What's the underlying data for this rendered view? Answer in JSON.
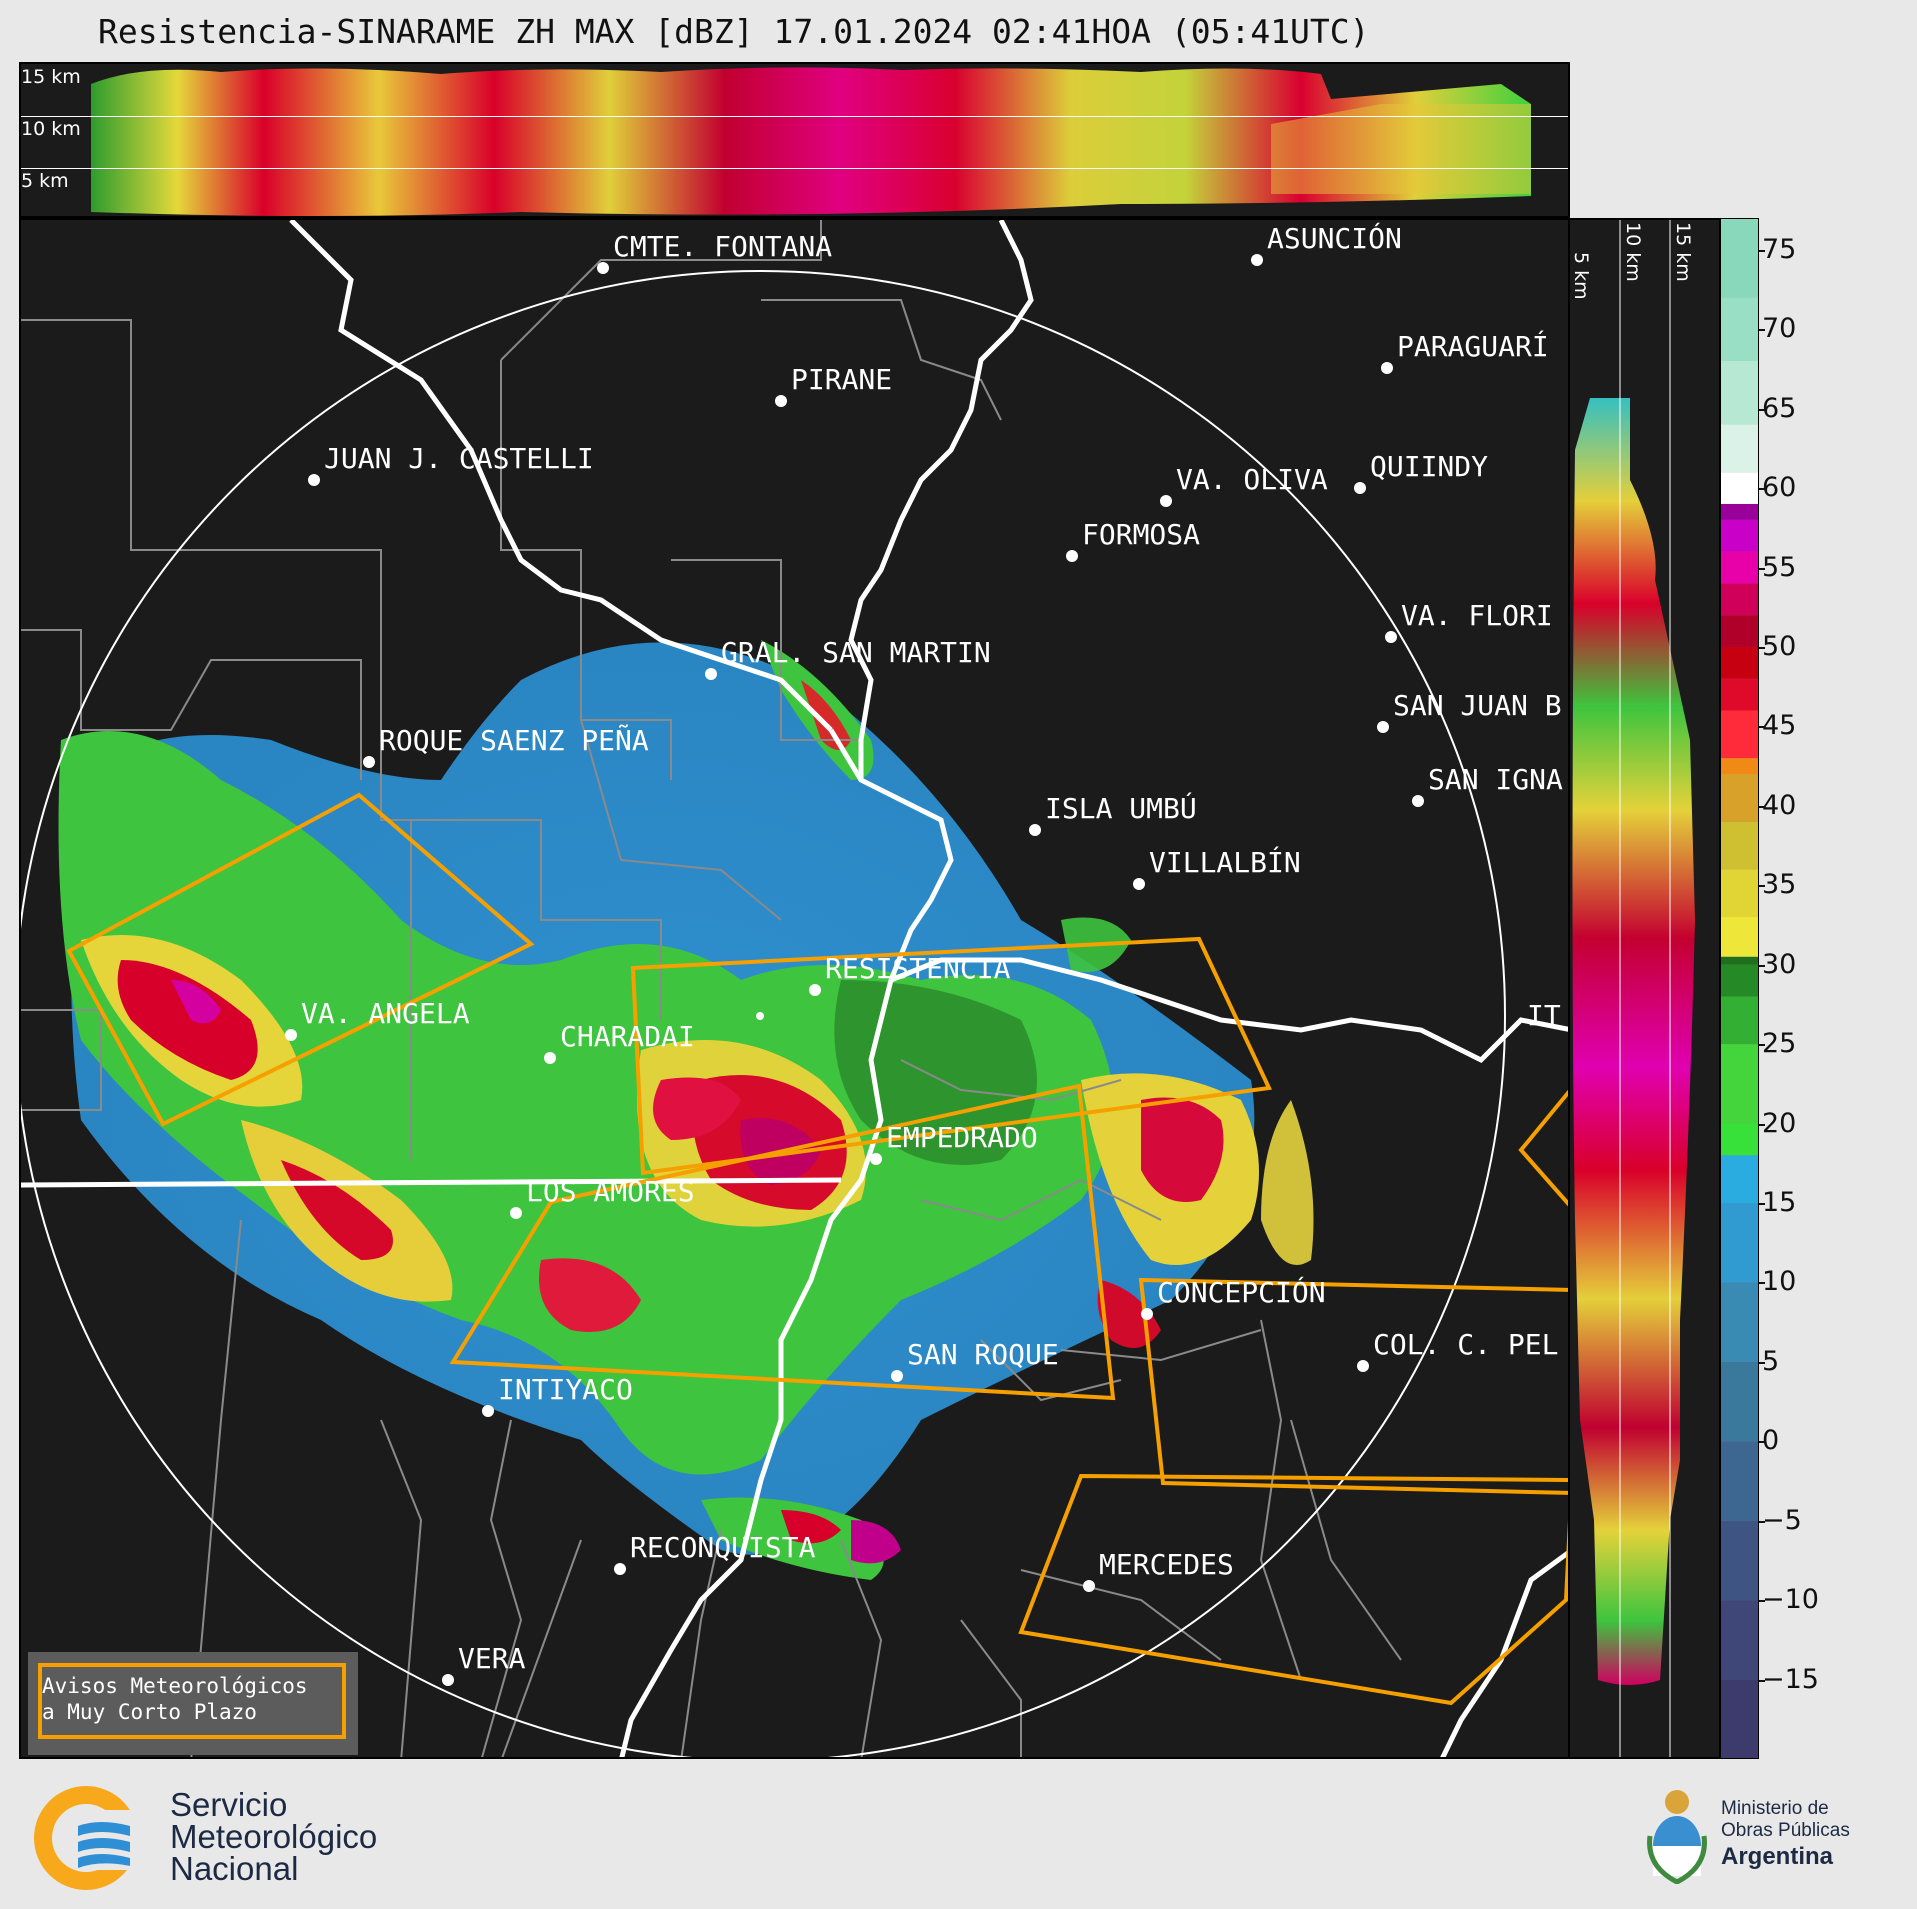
{
  "title": "Resistencia-SINARAME ZH MAX [dBZ] 17.01.2024 02:41HOA (05:41UTC)",
  "top_panel": {
    "km_labels": [
      "15 km",
      "10 km",
      "5 km"
    ]
  },
  "side_panel": {
    "km_labels": [
      "5 km",
      "10 km",
      "15 km"
    ]
  },
  "colorbar": {
    "unit": "dBZ",
    "ticks": [
      "75",
      "70",
      "65",
      "60",
      "55",
      "50",
      "45",
      "40",
      "35",
      "30",
      "25",
      "20",
      "15",
      "10",
      "5",
      "0",
      "−5",
      "−10",
      "−15"
    ],
    "range": [
      -20,
      77
    ]
  },
  "cities": [
    {
      "name": "CMTE. FONTANA"
    },
    {
      "name": "ASUNCIÓN"
    },
    {
      "name": "PARAGUARÍ"
    },
    {
      "name": "PIRANE"
    },
    {
      "name": "JUAN J. CASTELLI"
    },
    {
      "name": "VA. OLIVA"
    },
    {
      "name": "QUIINDY"
    },
    {
      "name": "FORMOSA"
    },
    {
      "name": "VA. FLORI"
    },
    {
      "name": "GRAL. SAN MARTIN"
    },
    {
      "name": "SAN JUAN B"
    },
    {
      "name": "ROQUE SAENZ PEÑA"
    },
    {
      "name": "SAN IGNA"
    },
    {
      "name": "ISLA UMBÚ"
    },
    {
      "name": "VILLALBÍN"
    },
    {
      "name": "RESISTENCIA"
    },
    {
      "name": "VA. ANGELA"
    },
    {
      "name": "IT"
    },
    {
      "name": "CHARADAI"
    },
    {
      "name": "EMPEDRADO"
    },
    {
      "name": "LOS AMORES"
    },
    {
      "name": "CONCEPCIÓN"
    },
    {
      "name": "COL. C. PEL"
    },
    {
      "name": "SAN ROQUE"
    },
    {
      "name": "INTIYACO"
    },
    {
      "name": "RECONQUISTA"
    },
    {
      "name": "MERCEDES"
    },
    {
      "name": "VERA"
    }
  ],
  "legend": {
    "line1": "Avisos Meteorológicos",
    "line2": "a Muy Corto Plazo",
    "color": "#f6a000"
  },
  "footer": {
    "smn": [
      "Servicio",
      "Meteorológico",
      "Nacional"
    ],
    "ministry": [
      "Ministerio de",
      "Obras Públicas",
      "Argentina"
    ]
  }
}
